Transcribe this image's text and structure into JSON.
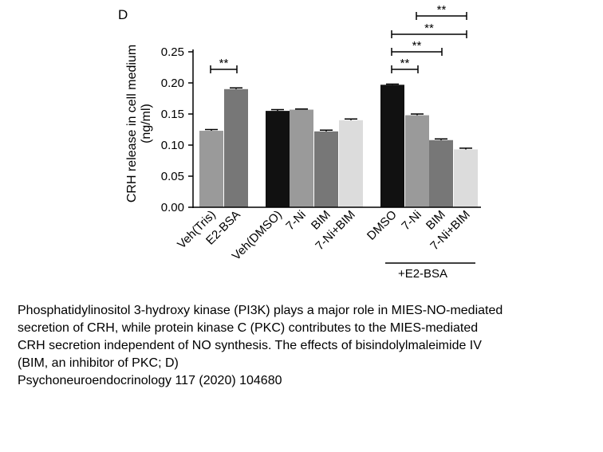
{
  "chart_data": {
    "type": "bar",
    "panel_label": "D",
    "ylabel": [
      "CRH release in cell medium",
      "(ng/ml)"
    ],
    "categories": [
      "Veh(Tris)",
      "E2-BSA",
      "Veh(DMSO)",
      "7-Ni",
      "BIM",
      "7-Ni+BIM",
      "DMSO",
      "7-Ni",
      "BIM",
      "7-Ni+BIM"
    ],
    "values": [
      0.123,
      0.19,
      0.155,
      0.157,
      0.122,
      0.14,
      0.197,
      0.148,
      0.108,
      0.093
    ],
    "errors": [
      0.002,
      0.002,
      0.002,
      0.001,
      0.002,
      0.002,
      0.001,
      0.002,
      0.002,
      0.002
    ],
    "colors": [
      "#9a9a9a",
      "#777777",
      "#111111",
      "#9a9a9a",
      "#777777",
      "#dcdcdc",
      "#111111",
      "#9a9a9a",
      "#777777",
      "#dcdcdc"
    ],
    "group_label": "+E2-BSA",
    "annotations": [
      "**",
      "**",
      "**",
      "**",
      "**"
    ],
    "ylim": [
      0,
      0.25
    ],
    "yticks": [
      {
        "value": 0,
        "label": "0.00"
      },
      {
        "value": 0.05,
        "label": "0.05"
      },
      {
        "value": 0.1,
        "label": "0.10"
      },
      {
        "value": 0.15,
        "label": "0.15"
      },
      {
        "value": 0.2,
        "label": "0.20"
      },
      {
        "value": 0.25,
        "label": "0.25"
      }
    ]
  },
  "caption": [
    "Phosphatidylinositol 3-hydroxy kinase (PI3K) plays a major role in MIES-NO-mediated",
    "secretion of CRH, while protein kinase C (PKC) contributes to the MIES-mediated",
    "CRH secretion independent of NO synthesis. The effects of bisindolylmaleimide IV",
    "(BIM, an inhibitor of PKC; D)",
    "Psychoneuroendocrinology 117 (2020) 104680"
  ]
}
